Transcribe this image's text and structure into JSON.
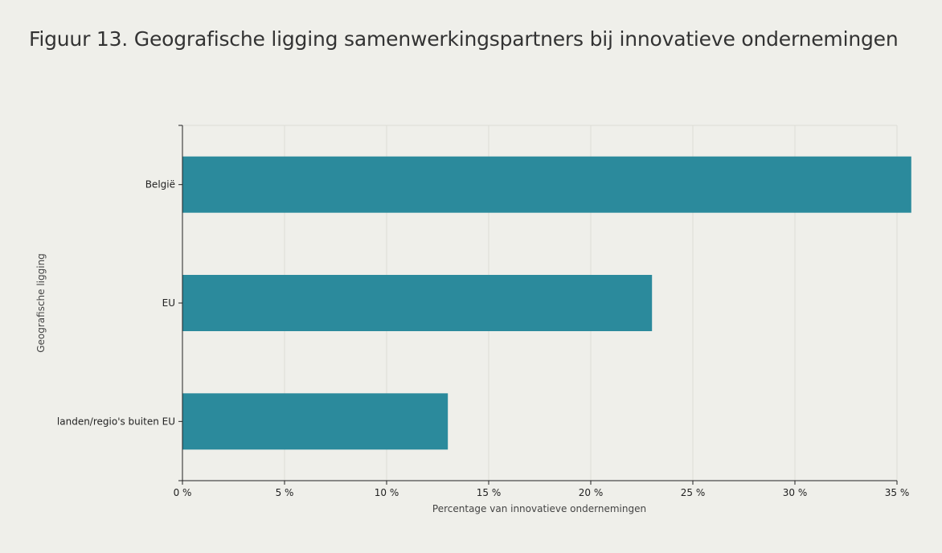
{
  "page": {
    "title": "Figuur 13. Geografische ligging samenwerkingspartners bij innovatieve ondernemingen"
  },
  "colors": {
    "background": "#efefea",
    "bar": "#2b8a9c",
    "grid": "#dcdcd6",
    "axis": "#222222"
  },
  "chart_data": {
    "type": "bar",
    "orientation": "horizontal",
    "title": "Figuur 13. Geografische ligging samenwerkingspartners bij innovatieve ondernemingen",
    "xlabel": "Percentage van innovatieve ondernemingen",
    "ylabel": "Geografische ligging",
    "categories": [
      "België",
      "EU",
      "landen/regio's buiten EU"
    ],
    "values": [
      35.7,
      23.0,
      13.0
    ],
    "xlim": [
      0,
      35
    ],
    "x_ticks": [
      0,
      5,
      10,
      15,
      20,
      25,
      30,
      35
    ],
    "x_tick_labels": [
      "0 %",
      "5 %",
      "10 %",
      "15 %",
      "20 %",
      "25 %",
      "30 %",
      "35 %"
    ],
    "grid": true,
    "legend": "none"
  }
}
